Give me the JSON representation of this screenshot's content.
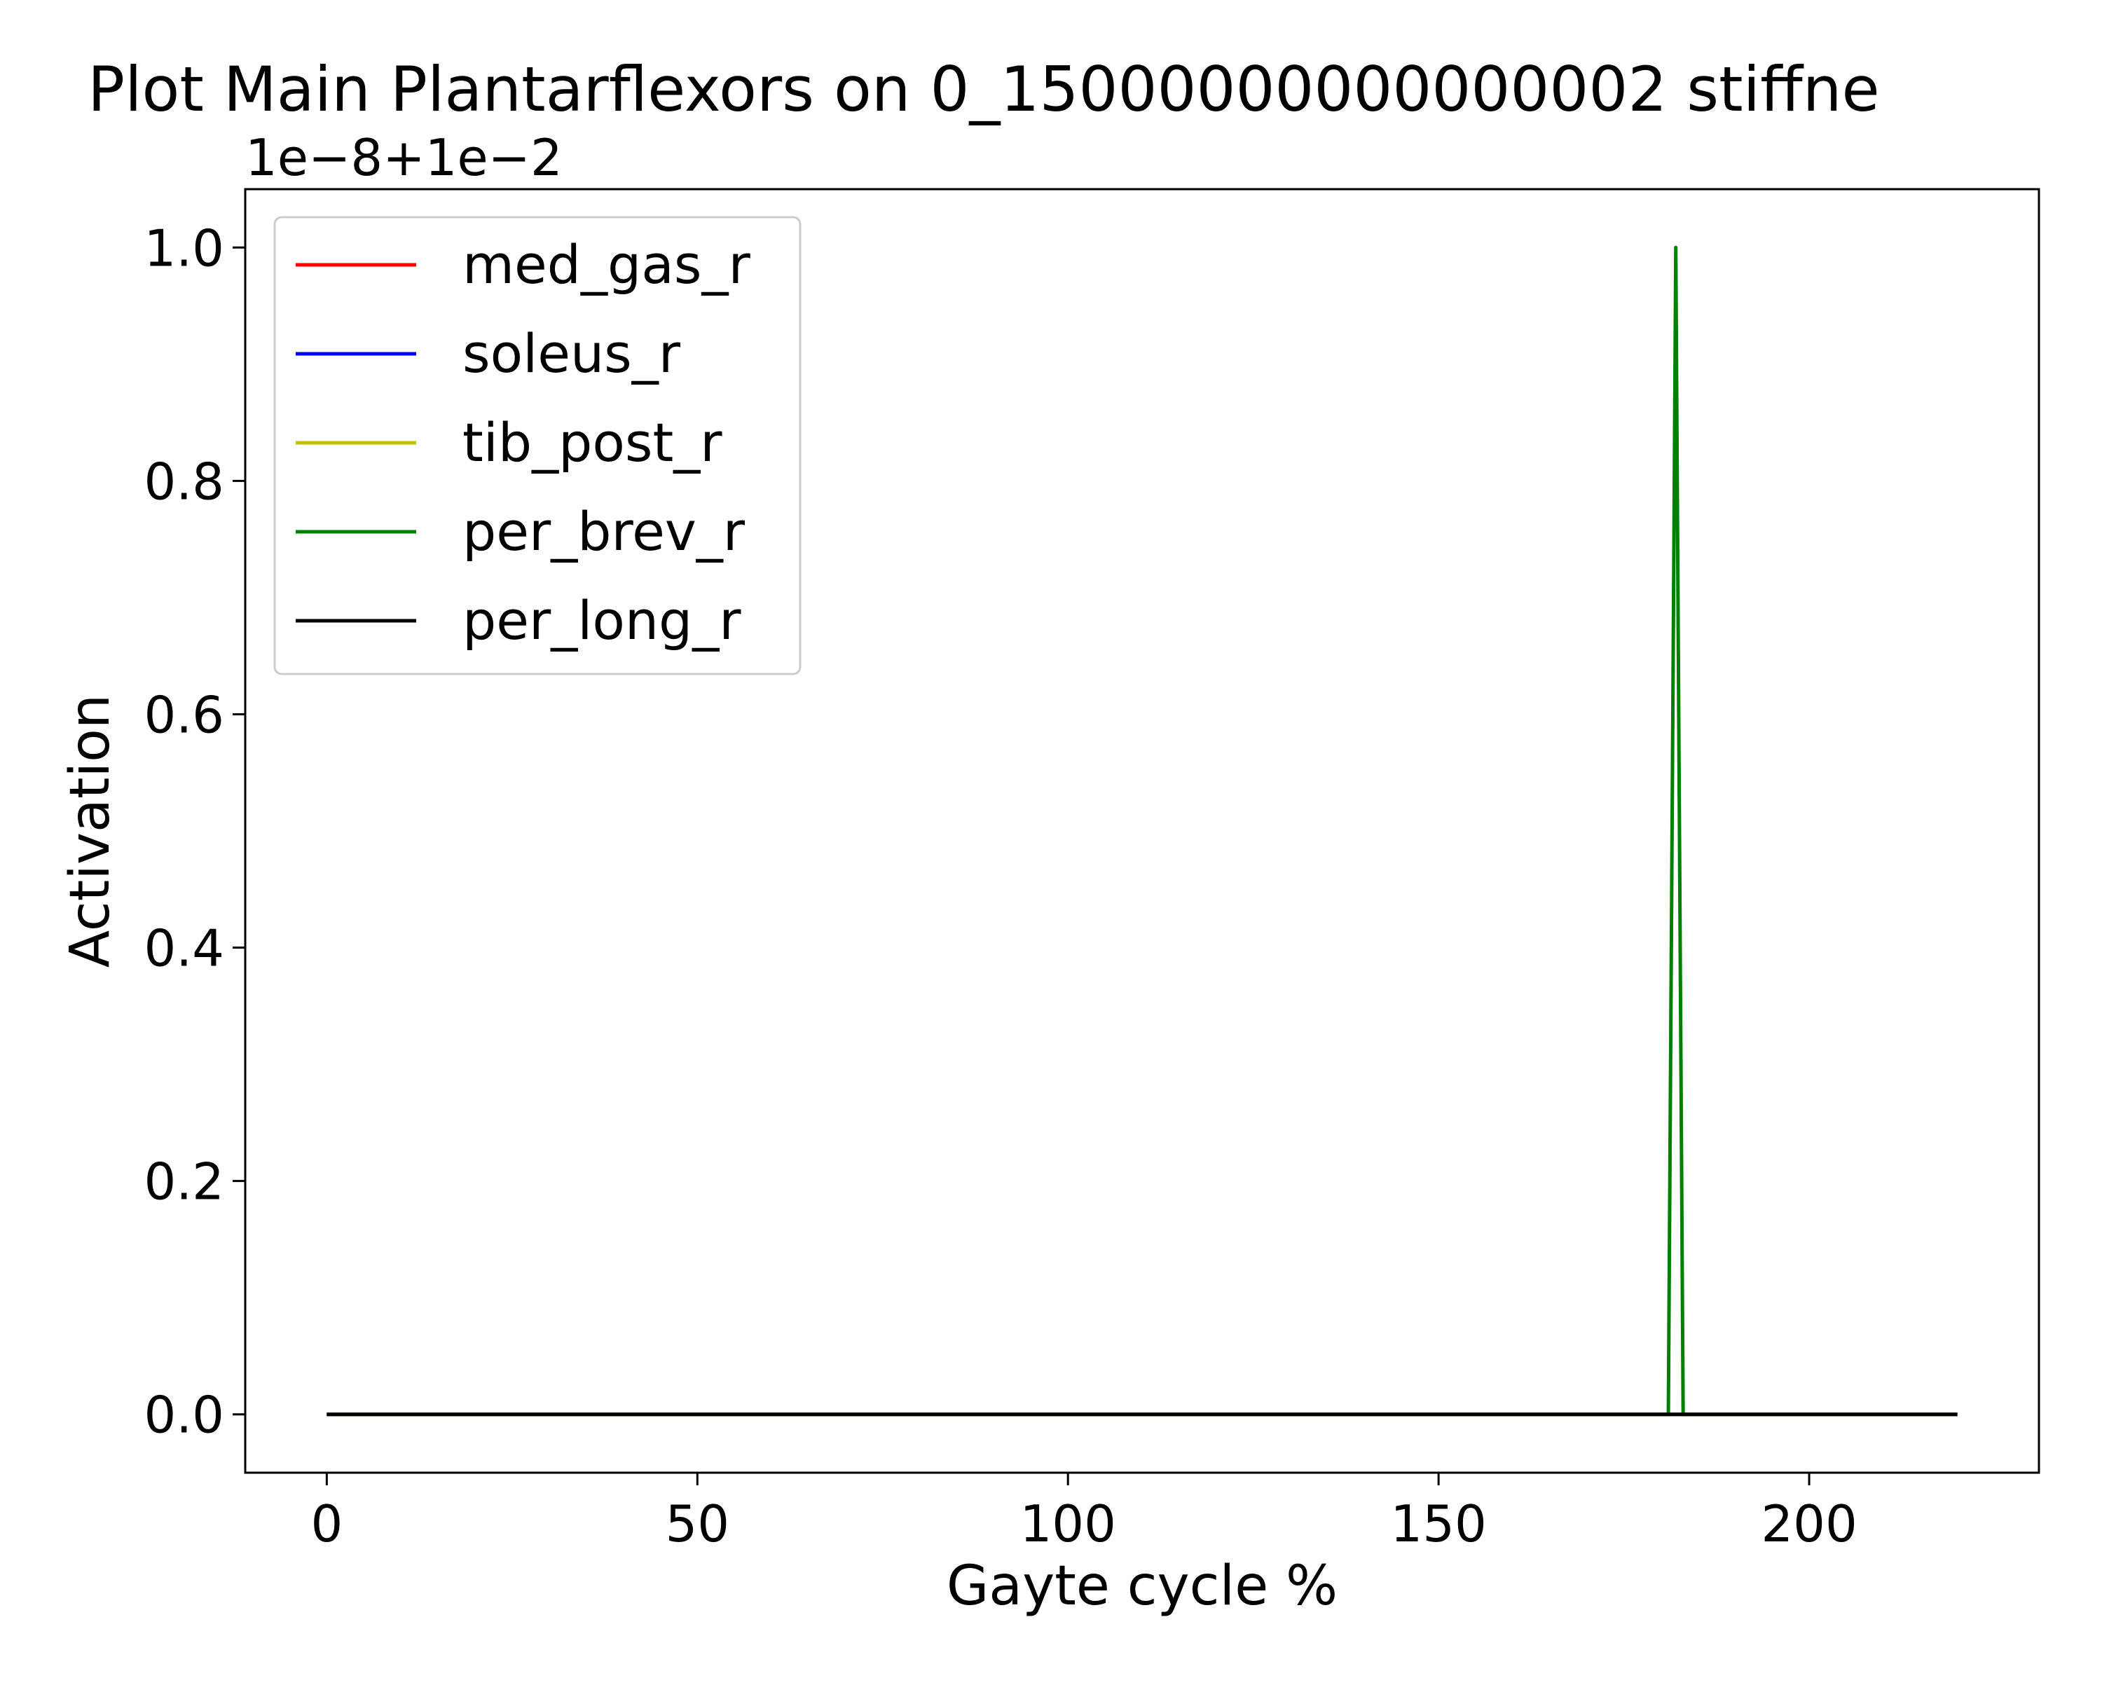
{
  "chart_data": {
    "type": "line",
    "title": "Plot Main Plantarflexors on 0_15000000000000002 stiffne",
    "offset_label": "1e−8+1e−2",
    "xlabel": "Gayte cycle %",
    "ylabel": "Activation",
    "xlim": [
      -11,
      231
    ],
    "ylim": [
      -0.05,
      1.05
    ],
    "xticks": [
      0,
      50,
      100,
      150,
      200
    ],
    "xtick_labels": [
      "0",
      "50",
      "100",
      "150",
      "200"
    ],
    "yticks": [
      0.0,
      0.2,
      0.4,
      0.6,
      0.8,
      1.0
    ],
    "ytick_labels": [
      "0.0",
      "0.2",
      "0.4",
      "0.6",
      "0.8",
      "1.0"
    ],
    "grid": false,
    "legend_position": "upper-left",
    "series": [
      {
        "name": "med_gas_r",
        "color": "#ff0000",
        "x": [
          0,
          220
        ],
        "y": [
          0,
          0
        ]
      },
      {
        "name": "soleus_r",
        "color": "#0000ff",
        "x": [
          0,
          220
        ],
        "y": [
          0,
          0
        ]
      },
      {
        "name": "tib_post_r",
        "color": "#bfbf00",
        "x": [
          0,
          220
        ],
        "y": [
          0,
          0
        ]
      },
      {
        "name": "per_brev_r",
        "color": "#008000",
        "x": [
          0,
          181,
          182,
          183,
          220
        ],
        "y": [
          0,
          0,
          1.0,
          0,
          0
        ]
      },
      {
        "name": "per_long_r",
        "color": "#000000",
        "x": [
          0,
          220
        ],
        "y": [
          0,
          0
        ]
      }
    ]
  }
}
